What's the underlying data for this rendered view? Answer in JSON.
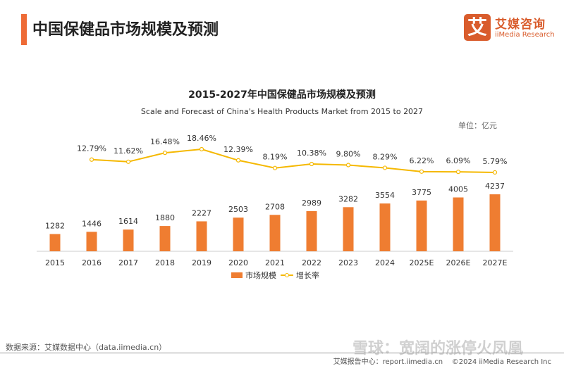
{
  "header": {
    "title": "中国保健品市场规模及预测"
  },
  "logo": {
    "mark": "艾",
    "name_cn": "艾媒咨询",
    "name_en": "iiMedia Research"
  },
  "chart_data": {
    "type": "bar+line",
    "title": "2015-2027年中国保健品市场规模及预测",
    "subtitle": "Scale and Forecast of China's Health Products Market from 2015 to 2027",
    "unit": "单位：亿元",
    "categories": [
      "2015",
      "2016",
      "2017",
      "2018",
      "2019",
      "2020",
      "2021",
      "2022",
      "2023",
      "2024",
      "2025E",
      "2026E",
      "2027E"
    ],
    "series": [
      {
        "name": "市场规模",
        "type": "bar",
        "color": "#ef7d31",
        "values": [
          1282,
          1446,
          1614,
          1880,
          2227,
          2503,
          2708,
          2989,
          3282,
          3554,
          3775,
          4005,
          4237
        ]
      },
      {
        "name": "增长率",
        "type": "line",
        "color": "#f5b800",
        "values": [
          null,
          12.79,
          11.62,
          16.48,
          18.46,
          12.39,
          8.19,
          10.38,
          9.8,
          8.29,
          6.22,
          6.09,
          5.79
        ],
        "labels": [
          "",
          "12.79%",
          "11.62%",
          "16.48%",
          "18.46%",
          "12.39%",
          "8.19%",
          "10.38%",
          "9.80%",
          "8.29%",
          "6.22%",
          "6.09%",
          "5.79%"
        ]
      }
    ],
    "legend": "bottom"
  },
  "footer": {
    "source": "数据来源：艾媒数据中心（data.iimedia.cn）",
    "report": "艾媒报告中心：report.iimedia.cn",
    "copyright": "©2024  iiMedia Research Inc",
    "watermark": "雪球：宽阔的涨停火凤凰"
  }
}
